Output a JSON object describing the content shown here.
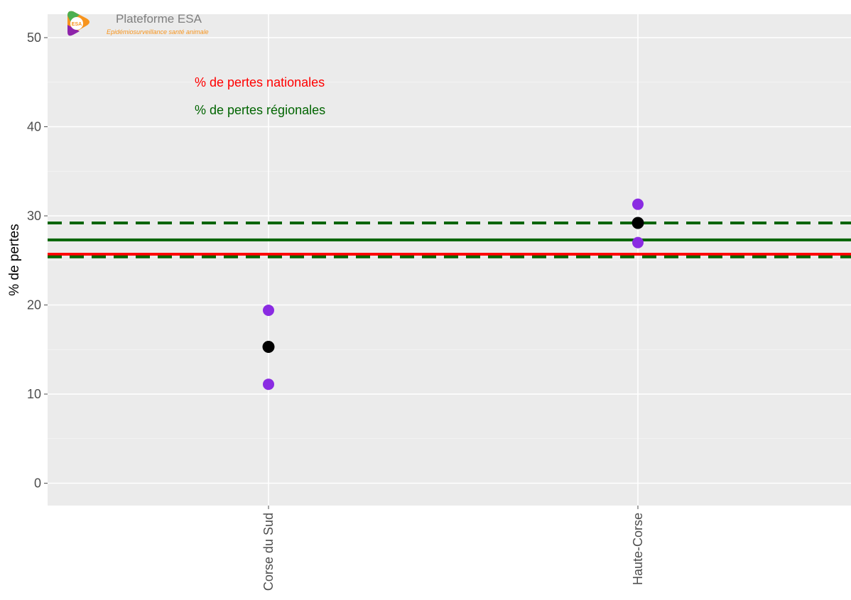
{
  "logo": {
    "title": "Plateforme ESA",
    "subtitle": "Epidémiosurveillance santé animale",
    "badge_text": "ESA",
    "colors": {
      "green": "#4caf50",
      "orange": "#f7941d",
      "purple": "#8e24aa",
      "subtitle": "#f7941d"
    }
  },
  "legend": {
    "national_label": "% de pertes nationales",
    "regional_label": "% de pertes régionales"
  },
  "chart_data": {
    "type": "scatter",
    "title": "",
    "xlabel": "",
    "ylabel": "% de pertes",
    "ylim": [
      -2.5,
      52
    ],
    "yticks": [
      0,
      10,
      20,
      30,
      40,
      50
    ],
    "grid": true,
    "legend_position": "top-left",
    "categories": [
      "Corse du Sud",
      "Haute-Corse"
    ],
    "series": [
      {
        "role": "estimate",
        "color": "#000000",
        "values": [
          15.3,
          29.2
        ]
      },
      {
        "role": "confidence-bounds",
        "color": "#8a2be2",
        "lower": [
          11.1,
          27.0
        ],
        "upper": [
          19.4,
          31.3
        ]
      }
    ],
    "reference_lines": [
      {
        "group": "national",
        "value": 25.7,
        "style": "solid",
        "color": "#ff0000"
      },
      {
        "group": "regional",
        "value": 27.3,
        "style": "solid",
        "color": "#006400"
      },
      {
        "group": "regional",
        "value": 29.2,
        "style": "dashed",
        "color": "#006400"
      },
      {
        "group": "regional",
        "value": 25.4,
        "style": "dashed",
        "color": "#006400"
      }
    ],
    "colors": {
      "panel": "#ebebeb",
      "grid": "#ffffff",
      "national": "#ff0000",
      "regional": "#006400"
    }
  }
}
